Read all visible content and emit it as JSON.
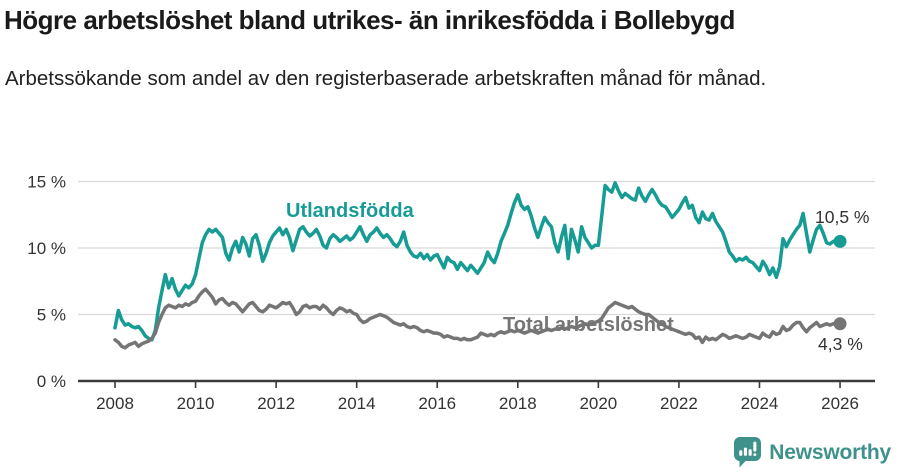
{
  "header": {
    "title": "Högre arbetslöshet bland utrikes- än inrikesfödda i Bollebygd",
    "subtitle": "Arbetssökande som andel av den registerbaserade arbetskraften månad för månad."
  },
  "chart_data": {
    "type": "line",
    "title": "Högre arbetslöshet bland utrikes- än inrikesfödda i Bollebygd",
    "subtitle": "Arbetssökande som andel av den registerbaserade arbetskraften månad för månad.",
    "grid": "horizontal",
    "legend_position": "inline-labels",
    "x_axis": {
      "unit": "year",
      "interval": "monthly",
      "start_year": 2008,
      "end_year": 2026,
      "ticks": [
        2008,
        2010,
        2012,
        2014,
        2016,
        2018,
        2020,
        2022,
        2024,
        2026
      ]
    },
    "y_axis": {
      "unit": "%",
      "range": [
        0,
        15.5
      ],
      "ticks": [
        {
          "value": 0,
          "label": "0 %"
        },
        {
          "value": 5,
          "label": "5 %"
        },
        {
          "value": 10,
          "label": "10 %"
        },
        {
          "value": 15,
          "label": "15 %"
        }
      ]
    },
    "series": [
      {
        "name": "Utlandsfödda",
        "color": "#169c94",
        "end_value": 10.5,
        "end_label": "10,5 %",
        "values": [
          4.0,
          5.3,
          4.6,
          4.2,
          4.3,
          4.1,
          4.0,
          4.1,
          3.8,
          3.4,
          3.2,
          3.1,
          3.8,
          5.5,
          6.8,
          8.0,
          7.0,
          7.7,
          6.9,
          6.4,
          6.8,
          7.2,
          7.0,
          7.3,
          8.0,
          9.2,
          10.4,
          11.0,
          11.4,
          11.2,
          11.4,
          11.1,
          10.8,
          9.6,
          9.1,
          10.0,
          10.5,
          9.7,
          10.8,
          10.3,
          9.4,
          10.7,
          11.0,
          10.2,
          9.0,
          9.6,
          10.4,
          10.9,
          11.2,
          11.5,
          11.0,
          11.4,
          10.8,
          9.8,
          10.6,
          11.4,
          11.6,
          11.2,
          10.9,
          11.1,
          11.4,
          10.9,
          10.2,
          10.0,
          10.7,
          11.0,
          10.8,
          10.5,
          10.7,
          10.9,
          10.6,
          10.8,
          11.2,
          11.6,
          11.0,
          10.5,
          11.0,
          11.2,
          11.5,
          11.1,
          10.8,
          11.0,
          10.7,
          10.3,
          10.1,
          10.5,
          11.2,
          10.2,
          9.7,
          9.4,
          9.3,
          9.6,
          9.2,
          9.5,
          9.1,
          9.4,
          9.5,
          9.0,
          8.5,
          9.3,
          9.0,
          8.9,
          8.4,
          8.9,
          8.6,
          8.3,
          8.7,
          8.4,
          8.1,
          8.5,
          8.9,
          9.7,
          9.2,
          8.9,
          9.6,
          10.5,
          11.1,
          11.7,
          12.6,
          13.4,
          14.0,
          13.2,
          12.9,
          13.1,
          12.4,
          11.5,
          10.8,
          11.6,
          12.3,
          11.9,
          11.6,
          10.4,
          9.7,
          10.8,
          11.7,
          9.2,
          11.4,
          10.6,
          9.7,
          11.6,
          10.8,
          10.4,
          10.0,
          10.2,
          10.2,
          12.4,
          14.7,
          14.4,
          14.2,
          14.9,
          14.3,
          13.8,
          14.1,
          13.9,
          13.7,
          13.6,
          14.5,
          13.9,
          13.5,
          14.0,
          14.4,
          14.0,
          13.5,
          13.2,
          13.1,
          12.7,
          12.3,
          12.6,
          12.9,
          13.4,
          13.8,
          13.0,
          13.2,
          12.3,
          11.9,
          12.7,
          12.2,
          12.1,
          12.6,
          12.0,
          11.6,
          11.2,
          10.5,
          9.7,
          9.4,
          9.0,
          9.2,
          9.1,
          9.3,
          9.0,
          8.9,
          8.6,
          8.3,
          9.0,
          8.6,
          8.0,
          8.5,
          7.8,
          8.6,
          10.7,
          10.1,
          10.6,
          11.0,
          11.4,
          11.7,
          12.6,
          11.1,
          9.7,
          10.6,
          11.4,
          11.7,
          11.1,
          10.4,
          10.3,
          10.5,
          10.4,
          10.5
        ]
      },
      {
        "name": "Total arbetslöshet",
        "color": "#757575",
        "end_value": 4.3,
        "end_label": "4,3 %",
        "values": [
          3.1,
          2.9,
          2.6,
          2.5,
          2.7,
          2.8,
          2.9,
          2.6,
          2.8,
          2.9,
          3.0,
          3.2,
          3.6,
          4.4,
          5.0,
          5.5,
          5.7,
          5.6,
          5.5,
          5.7,
          5.6,
          5.8,
          5.7,
          5.9,
          6.0,
          6.4,
          6.7,
          6.9,
          6.6,
          6.3,
          5.8,
          6.1,
          6.2,
          5.9,
          5.7,
          5.9,
          5.8,
          5.5,
          5.2,
          5.5,
          5.8,
          5.9,
          5.6,
          5.3,
          5.2,
          5.4,
          5.7,
          5.6,
          5.5,
          5.7,
          5.9,
          5.8,
          5.9,
          5.5,
          5.0,
          5.2,
          5.6,
          5.7,
          5.5,
          5.6,
          5.6,
          5.4,
          5.7,
          5.5,
          5.2,
          5.0,
          5.3,
          5.5,
          5.4,
          5.2,
          5.3,
          5.1,
          5.0,
          4.6,
          4.4,
          4.5,
          4.7,
          4.8,
          4.9,
          5.0,
          4.9,
          4.8,
          4.6,
          4.4,
          4.3,
          4.2,
          4.3,
          4.1,
          4.0,
          4.1,
          4.0,
          3.8,
          3.7,
          3.8,
          3.7,
          3.6,
          3.6,
          3.5,
          3.3,
          3.4,
          3.3,
          3.2,
          3.2,
          3.1,
          3.2,
          3.1,
          3.1,
          3.2,
          3.3,
          3.6,
          3.5,
          3.4,
          3.5,
          3.4,
          3.6,
          3.7,
          3.6,
          3.7,
          3.8,
          3.7,
          3.8,
          3.7,
          3.6,
          3.7,
          3.8,
          3.7,
          3.6,
          3.7,
          3.8,
          3.9,
          3.8,
          3.9,
          3.9,
          4.0,
          3.9,
          4.0,
          4.1,
          4.0,
          4.1,
          4.2,
          4.3,
          4.2,
          4.3,
          4.4,
          4.5,
          4.7,
          5.1,
          5.5,
          5.7,
          5.9,
          5.8,
          5.7,
          5.6,
          5.5,
          5.6,
          5.4,
          5.2,
          5.1,
          5.0,
          5.0,
          4.8,
          4.6,
          4.4,
          4.3,
          4.1,
          4.0,
          3.9,
          3.8,
          3.7,
          3.6,
          3.5,
          3.6,
          3.5,
          3.2,
          3.3,
          2.9,
          3.3,
          3.1,
          3.2,
          3.1,
          3.3,
          3.5,
          3.4,
          3.2,
          3.3,
          3.4,
          3.3,
          3.2,
          3.3,
          3.5,
          3.4,
          3.3,
          3.2,
          3.6,
          3.4,
          3.3,
          3.7,
          3.5,
          3.6,
          4.1,
          3.8,
          3.9,
          4.2,
          4.4,
          4.4,
          4.0,
          3.7,
          4.0,
          4.2,
          4.4,
          4.1,
          4.2,
          4.3,
          4.2,
          4.3,
          4.3,
          4.3
        ]
      }
    ]
  },
  "footer": {
    "brand": "Newsworthy"
  },
  "colors": {
    "accent_teal": "#169c94",
    "series_gray": "#757575",
    "logo_teal": "#3f918c",
    "gridline": "#d9d9d9",
    "axis": "#3a3a3a"
  }
}
